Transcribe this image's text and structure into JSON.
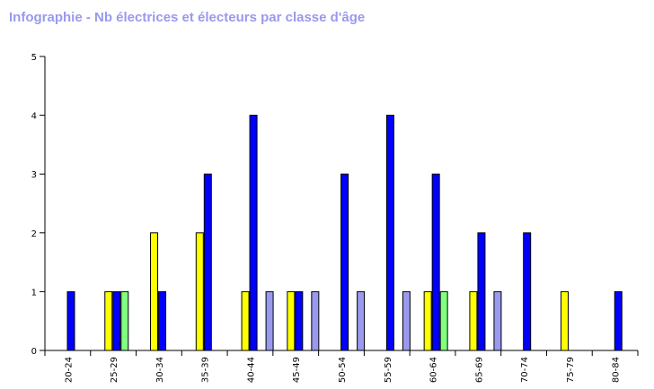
{
  "chart_data": {
    "type": "bar",
    "title": "Infographie - Nb électrices et électeurs par classe d'âge",
    "xlabel": "",
    "ylabel": "",
    "ylim": [
      0,
      5
    ],
    "yticks": [
      "0",
      "1",
      "2",
      "3",
      "4",
      "5"
    ],
    "categories": [
      "20-24",
      "25-29",
      "30-34",
      "35-39",
      "40-44",
      "45-49",
      "50-54",
      "55-59",
      "60-64",
      "65-69",
      "70-74",
      "75-79",
      "80-84"
    ],
    "series": [
      {
        "color": "#ffff00",
        "values": [
          0,
          1,
          2,
          2,
          1,
          1,
          0,
          0,
          1,
          1,
          0,
          1,
          0
        ]
      },
      {
        "color": "#0000ff",
        "values": [
          1,
          1,
          1,
          3,
          4,
          1,
          3,
          4,
          3,
          2,
          2,
          0,
          1
        ]
      },
      {
        "color": "#80ff80",
        "values": [
          0,
          1,
          0,
          0,
          0,
          0,
          0,
          0,
          1,
          0,
          0,
          0,
          0
        ]
      },
      {
        "color": "#9999ee",
        "values": [
          0,
          0,
          0,
          0,
          1,
          1,
          1,
          1,
          0,
          1,
          0,
          0,
          0
        ]
      }
    ],
    "grid": false,
    "legend": "none"
  }
}
